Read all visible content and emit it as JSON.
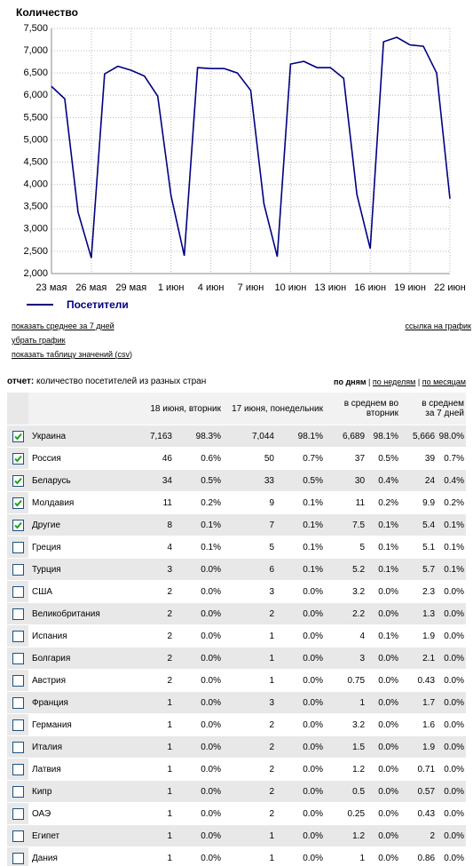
{
  "chart_data": {
    "type": "line",
    "title": "Количество",
    "categories": [
      "23 мая",
      null,
      null,
      "26 мая",
      null,
      null,
      "29 мая",
      null,
      null,
      "1 июн",
      null,
      null,
      "4 июн",
      null,
      null,
      "7 июн",
      null,
      null,
      "10 июн",
      null,
      null,
      "13 июн",
      null,
      null,
      "16 июн",
      null,
      null,
      "19 июн",
      null,
      null,
      "22 июн"
    ],
    "series": [
      {
        "name": "Посетители",
        "color": "#000080",
        "values": [
          6200,
          5920,
          3380,
          2350,
          6480,
          6650,
          6560,
          6430,
          5980,
          3750,
          2400,
          6620,
          6600,
          6600,
          6500,
          6110,
          3560,
          2380,
          6700,
          6760,
          6620,
          6620,
          6380,
          3770,
          2560,
          7200,
          7300,
          7130,
          7100,
          6500,
          3680
        ]
      }
    ],
    "ylim": [
      2000,
      7500
    ],
    "yticks": [
      {
        "value": 2000,
        "label": "2,000"
      },
      {
        "value": 2500,
        "label": "2,500"
      },
      {
        "value": 3000,
        "label": "3,000"
      },
      {
        "value": 3500,
        "label": "3,500"
      },
      {
        "value": 4000,
        "label": "4,000"
      },
      {
        "value": 4500,
        "label": "4,500"
      },
      {
        "value": 5000,
        "label": "5,000"
      },
      {
        "value": 5500,
        "label": "5,500"
      },
      {
        "value": 6000,
        "label": "6,000"
      },
      {
        "value": 6500,
        "label": "6,500"
      },
      {
        "value": 7000,
        "label": "7,000"
      },
      {
        "value": 7500,
        "label": "7,500"
      }
    ],
    "grid": true,
    "legend": "bottom"
  },
  "links": {
    "show_average": "показать среднее за 7 дней",
    "remove_chart": "убрать график",
    "show_table": "показать таблицу значений (",
    "csv": "csv",
    "show_table_end": ")",
    "chart_link": "ссылка на график"
  },
  "report": {
    "label": "отчет:",
    "text": "количество посетителей из разных стран",
    "periods": [
      "по дням",
      "по неделям",
      "по месяцам"
    ],
    "separator": "|"
  },
  "table": {
    "headers": [
      "18 июня, вторник",
      "17 июня, понедельник",
      "в среднем во вторник",
      "в среднем за 7 дней"
    ],
    "rows": [
      {
        "checked": true,
        "cells": [
          "Украина",
          "7,163",
          "98.3%",
          "7,044",
          "98.1%",
          "6,689",
          "98.1%",
          "5,666",
          "98.0%"
        ]
      },
      {
        "checked": true,
        "cells": [
          "Россия",
          "46",
          "0.6%",
          "50",
          "0.7%",
          "37",
          "0.5%",
          "39",
          "0.7%"
        ]
      },
      {
        "checked": true,
        "cells": [
          "Беларусь",
          "34",
          "0.5%",
          "33",
          "0.5%",
          "30",
          "0.4%",
          "24",
          "0.4%"
        ]
      },
      {
        "checked": true,
        "cells": [
          "Молдавия",
          "11",
          "0.2%",
          "9",
          "0.1%",
          "11",
          "0.2%",
          "9.9",
          "0.2%"
        ]
      },
      {
        "checked": true,
        "cells": [
          "Другие",
          "8",
          "0.1%",
          "7",
          "0.1%",
          "7.5",
          "0.1%",
          "5.4",
          "0.1%"
        ]
      },
      {
        "checked": false,
        "cells": [
          "Греция",
          "4",
          "0.1%",
          "5",
          "0.1%",
          "5",
          "0.1%",
          "5.1",
          "0.1%"
        ]
      },
      {
        "checked": false,
        "cells": [
          "Турция",
          "3",
          "0.0%",
          "6",
          "0.1%",
          "5.2",
          "0.1%",
          "5.7",
          "0.1%"
        ]
      },
      {
        "checked": false,
        "cells": [
          "США",
          "2",
          "0.0%",
          "3",
          "0.0%",
          "3.2",
          "0.0%",
          "2.3",
          "0.0%"
        ]
      },
      {
        "checked": false,
        "cells": [
          "Великобритания",
          "2",
          "0.0%",
          "2",
          "0.0%",
          "2.2",
          "0.0%",
          "1.3",
          "0.0%"
        ]
      },
      {
        "checked": false,
        "cells": [
          "Испания",
          "2",
          "0.0%",
          "1",
          "0.0%",
          "4",
          "0.1%",
          "1.9",
          "0.0%"
        ]
      },
      {
        "checked": false,
        "cells": [
          "Болгария",
          "2",
          "0.0%",
          "1",
          "0.0%",
          "3",
          "0.0%",
          "2.1",
          "0.0%"
        ]
      },
      {
        "checked": false,
        "cells": [
          "Австрия",
          "2",
          "0.0%",
          "1",
          "0.0%",
          "0.75",
          "0.0%",
          "0.43",
          "0.0%"
        ]
      },
      {
        "checked": false,
        "cells": [
          "Франция",
          "1",
          "0.0%",
          "3",
          "0.0%",
          "1",
          "0.0%",
          "1.7",
          "0.0%"
        ]
      },
      {
        "checked": false,
        "cells": [
          "Германия",
          "1",
          "0.0%",
          "2",
          "0.0%",
          "3.2",
          "0.0%",
          "1.6",
          "0.0%"
        ]
      },
      {
        "checked": false,
        "cells": [
          "Италия",
          "1",
          "0.0%",
          "2",
          "0.0%",
          "1.5",
          "0.0%",
          "1.9",
          "0.0%"
        ]
      },
      {
        "checked": false,
        "cells": [
          "Латвия",
          "1",
          "0.0%",
          "2",
          "0.0%",
          "1.2",
          "0.0%",
          "0.71",
          "0.0%"
        ]
      },
      {
        "checked": false,
        "cells": [
          "Кипр",
          "1",
          "0.0%",
          "2",
          "0.0%",
          "0.5",
          "0.0%",
          "0.57",
          "0.0%"
        ]
      },
      {
        "checked": false,
        "cells": [
          "ОАЭ",
          "1",
          "0.0%",
          "2",
          "0.0%",
          "0.25",
          "0.0%",
          "0.43",
          "0.0%"
        ]
      },
      {
        "checked": false,
        "cells": [
          "Египет",
          "1",
          "0.0%",
          "1",
          "0.0%",
          "1.2",
          "0.0%",
          "2",
          "0.0%"
        ]
      },
      {
        "checked": false,
        "cells": [
          "Дания",
          "1",
          "0.0%",
          "1",
          "0.0%",
          "1",
          "0.0%",
          "0.86",
          "0.0%"
        ]
      }
    ]
  }
}
